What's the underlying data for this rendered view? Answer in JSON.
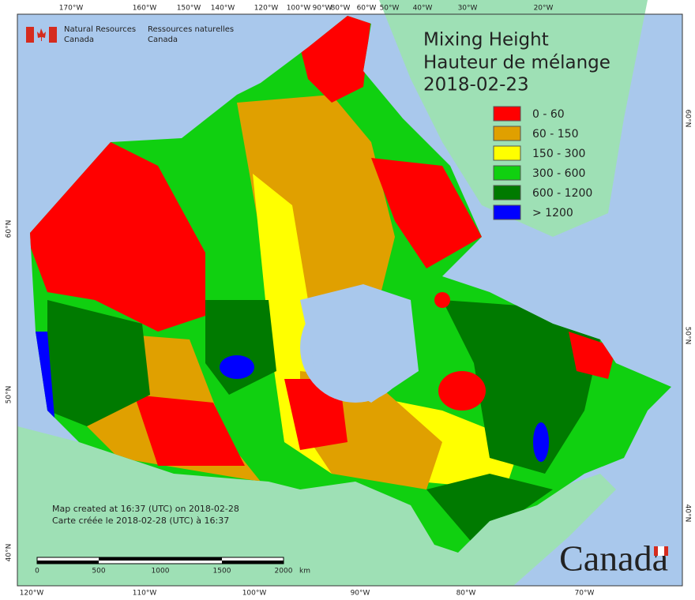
{
  "header": {
    "agency_en": [
      "Natural Resources",
      "Canada"
    ],
    "agency_fr": [
      "Ressources naturelles",
      "Canada"
    ]
  },
  "title": [
    "Mixing Height",
    "Hauteur de mélange",
    "2018-02-23"
  ],
  "legend": [
    {
      "label": "0 - 60",
      "color": "#ff0000"
    },
    {
      "label": "60 - 150",
      "color": "#e0a000"
    },
    {
      "label": "150 - 300",
      "color": "#ffff00"
    },
    {
      "label": "300 - 600",
      "color": "#10d010"
    },
    {
      "label": "600 - 1200",
      "color": "#007a00"
    },
    {
      "label": "> 1200",
      "color": "#0000ff"
    }
  ],
  "graticule": {
    "top": [
      "170°W",
      "160°W",
      "150°W",
      "140°W",
      "120°W",
      "100°W",
      "90°W",
      "80°W",
      "60°W",
      "50°W",
      "40°W",
      "30°W",
      "20°W"
    ],
    "bottom": [
      "120°W",
      "110°W",
      "100°W",
      "90°W",
      "80°W",
      "70°W"
    ],
    "left": [
      "60°N",
      "50°N",
      "40°N"
    ],
    "right": [
      "60°N",
      "50°N",
      "40°N"
    ]
  },
  "credits": [
    "Map created at 16:37 (UTC) on 2018-02-28",
    "Carte créée le 2018-02-28 (UTC) à 16:37"
  ],
  "scale_bar": {
    "ticks": [
      "0",
      "500",
      "1000",
      "1500",
      "2000"
    ],
    "unit": "km"
  },
  "wordmark": "Canada"
}
